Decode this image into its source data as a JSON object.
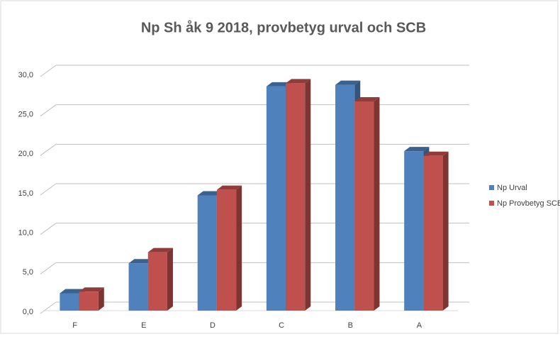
{
  "chart_data": {
    "type": "bar3d",
    "title": "Np Sh åk 9 2018, provbetyg urval och SCB",
    "categories": [
      "F",
      "E",
      "D",
      "C",
      "B",
      "A"
    ],
    "series": [
      {
        "name": "Np Urval",
        "color": "#4f81bd",
        "values": [
          2.2,
          6.0,
          14.6,
          28.4,
          28.6,
          20.2
        ]
      },
      {
        "name": "Np Provbetyg SCB",
        "color": "#c0504d",
        "values": [
          2.4,
          7.4,
          15.3,
          28.8,
          26.5,
          19.6
        ]
      }
    ],
    "ylim": [
      0,
      30
    ],
    "yticks": [
      {
        "value": 0,
        "label": "0,0"
      },
      {
        "value": 5,
        "label": "5,0"
      },
      {
        "value": 10,
        "label": "10,0"
      },
      {
        "value": 15,
        "label": "15,0"
      },
      {
        "value": 20,
        "label": "20,0"
      },
      {
        "value": 25,
        "label": "25,0"
      },
      {
        "value": 30,
        "label": "30,0"
      }
    ],
    "grid": true,
    "legend": "right"
  }
}
